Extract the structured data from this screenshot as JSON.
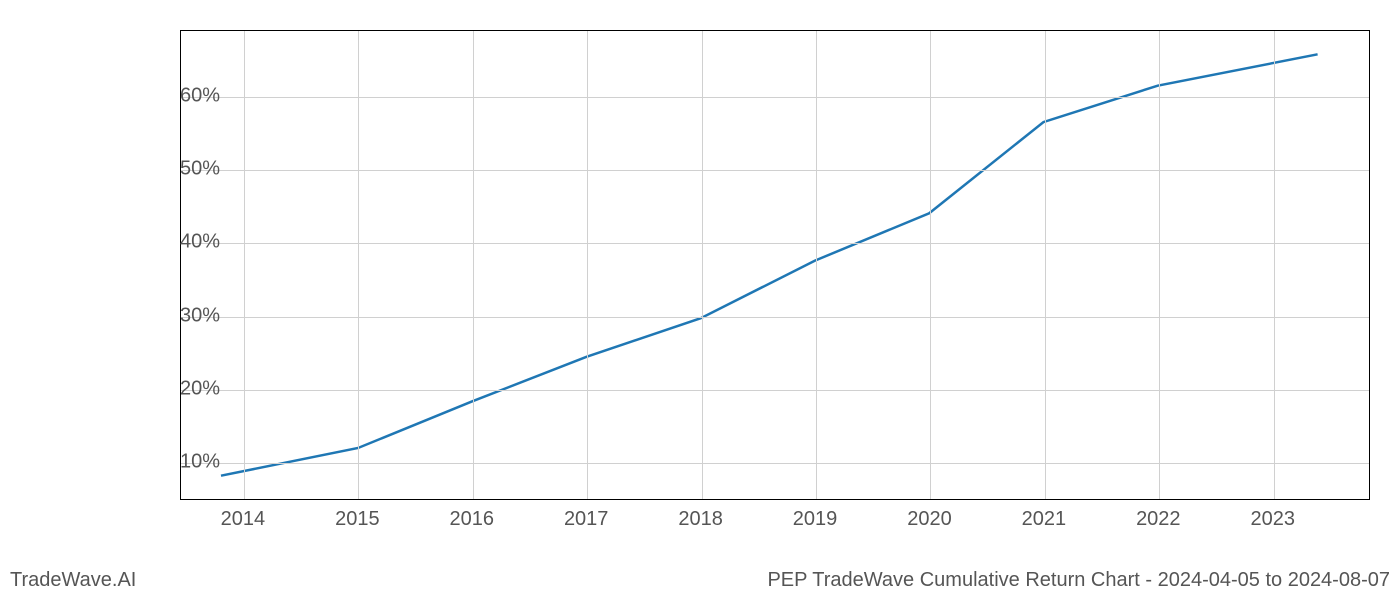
{
  "chart": {
    "type": "line",
    "line_color": "#1f77b4",
    "line_width": 2.5,
    "background_color": "#ffffff",
    "grid_color": "#d0d0d0",
    "border_color": "#000000",
    "tick_label_color": "#555555",
    "tick_fontsize": 20,
    "x_values": [
      2013.8,
      2015,
      2016,
      2017,
      2018,
      2019,
      2020,
      2021,
      2022,
      2023.4
    ],
    "y_values": [
      8,
      11.8,
      18.2,
      24.3,
      29.6,
      37.5,
      44,
      56.5,
      61.5,
      65.8
    ],
    "x_ticks": [
      2014,
      2015,
      2016,
      2017,
      2018,
      2019,
      2020,
      2021,
      2022,
      2023
    ],
    "x_tick_labels": [
      "2014",
      "2015",
      "2016",
      "2017",
      "2018",
      "2019",
      "2020",
      "2021",
      "2022",
      "2023"
    ],
    "y_ticks": [
      10,
      20,
      30,
      40,
      50,
      60
    ],
    "y_tick_labels": [
      "10%",
      "20%",
      "30%",
      "40%",
      "50%",
      "60%"
    ],
    "xlim": [
      2013.45,
      2023.85
    ],
    "ylim": [
      4.8,
      69
    ]
  },
  "footer": {
    "left": "TradeWave.AI",
    "right": "PEP TradeWave Cumulative Return Chart - 2024-04-05 to 2024-08-07"
  }
}
